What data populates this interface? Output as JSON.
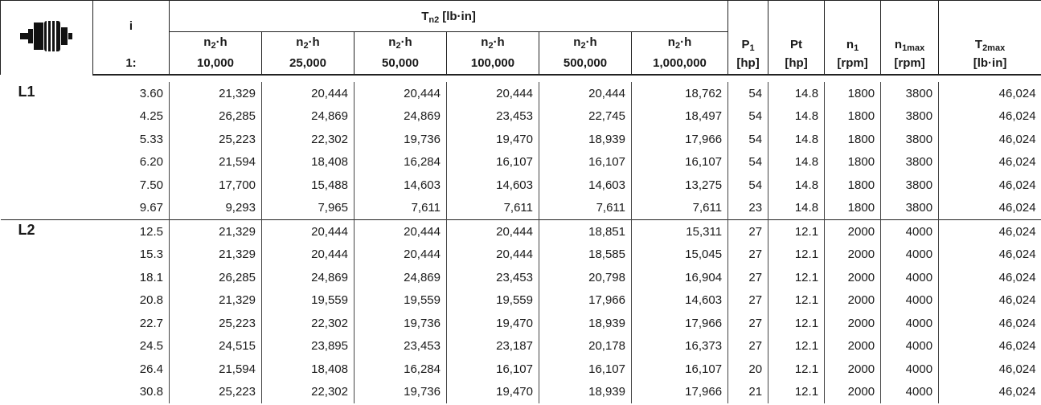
{
  "header": {
    "ratio": {
      "label": "i",
      "prefix": "1:"
    },
    "torque": {
      "base": "T",
      "sub": "n2",
      "unit": "[lb·in]",
      "columns": [
        {
          "base": "n",
          "sub": "2",
          "suffix": "·h",
          "hours": "10,000"
        },
        {
          "base": "n",
          "sub": "2",
          "suffix": "·h",
          "hours": "25,000"
        },
        {
          "base": "n",
          "sub": "2",
          "suffix": "·h",
          "hours": "50,000"
        },
        {
          "base": "n",
          "sub": "2",
          "suffix": "·h",
          "hours": "100,000"
        },
        {
          "base": "n",
          "sub": "2",
          "suffix": "·h",
          "hours": "500,000"
        },
        {
          "base": "n",
          "sub": "2",
          "suffix": "·h",
          "hours": "1,000,000"
        }
      ]
    },
    "others": [
      {
        "base": "P",
        "sub": "1",
        "unit": "[hp]"
      },
      {
        "base": "Pt",
        "unit": "[hp]"
      },
      {
        "base": "n",
        "sub": "1",
        "unit": "[rpm]"
      },
      {
        "base": "n",
        "sub": "1max",
        "unit": "[rpm]"
      },
      {
        "base": "T",
        "sub": "2max",
        "unit": "[lb·in]"
      }
    ]
  },
  "groups": [
    {
      "label": "L1",
      "rows": [
        [
          "3.60",
          "21,329",
          "20,444",
          "20,444",
          "20,444",
          "20,444",
          "18,762",
          "54",
          "14.8",
          "1800",
          "3800",
          "46,024"
        ],
        [
          "4.25",
          "26,285",
          "24,869",
          "24,869",
          "23,453",
          "22,745",
          "18,497",
          "54",
          "14.8",
          "1800",
          "3800",
          "46,024"
        ],
        [
          "5.33",
          "25,223",
          "22,302",
          "19,736",
          "19,470",
          "18,939",
          "17,966",
          "54",
          "14.8",
          "1800",
          "3800",
          "46,024"
        ],
        [
          "6.20",
          "21,594",
          "18,408",
          "16,284",
          "16,107",
          "16,107",
          "16,107",
          "54",
          "14.8",
          "1800",
          "3800",
          "46,024"
        ],
        [
          "7.50",
          "17,700",
          "15,488",
          "14,603",
          "14,603",
          "14,603",
          "13,275",
          "54",
          "14.8",
          "1800",
          "3800",
          "46,024"
        ],
        [
          "9.67",
          "9,293",
          "7,965",
          "7,611",
          "7,611",
          "7,611",
          "7,611",
          "23",
          "14.8",
          "1800",
          "3800",
          "46,024"
        ]
      ]
    },
    {
      "label": "L2",
      "rows": [
        [
          "12.5",
          "21,329",
          "20,444",
          "20,444",
          "20,444",
          "18,851",
          "15,311",
          "27",
          "12.1",
          "2000",
          "4000",
          "46,024"
        ],
        [
          "15.3",
          "21,329",
          "20,444",
          "20,444",
          "20,444",
          "18,585",
          "15,045",
          "27",
          "12.1",
          "2000",
          "4000",
          "46,024"
        ],
        [
          "18.1",
          "26,285",
          "24,869",
          "24,869",
          "23,453",
          "20,798",
          "16,904",
          "27",
          "12.1",
          "2000",
          "4000",
          "46,024"
        ],
        [
          "20.8",
          "21,329",
          "19,559",
          "19,559",
          "19,559",
          "17,966",
          "14,603",
          "27",
          "12.1",
          "2000",
          "4000",
          "46,024"
        ],
        [
          "22.7",
          "25,223",
          "22,302",
          "19,736",
          "19,470",
          "18,939",
          "17,966",
          "27",
          "12.1",
          "2000",
          "4000",
          "46,024"
        ],
        [
          "24.5",
          "24,515",
          "23,895",
          "23,453",
          "23,187",
          "20,178",
          "16,373",
          "27",
          "12.1",
          "2000",
          "4000",
          "46,024"
        ],
        [
          "26.4",
          "21,594",
          "18,408",
          "16,284",
          "16,107",
          "16,107",
          "16,107",
          "20",
          "12.1",
          "2000",
          "4000",
          "46,024"
        ],
        [
          "30.8",
          "25,223",
          "22,302",
          "19,736",
          "19,470",
          "18,939",
          "17,966",
          "21",
          "12.1",
          "2000",
          "4000",
          "46,024"
        ]
      ]
    }
  ]
}
